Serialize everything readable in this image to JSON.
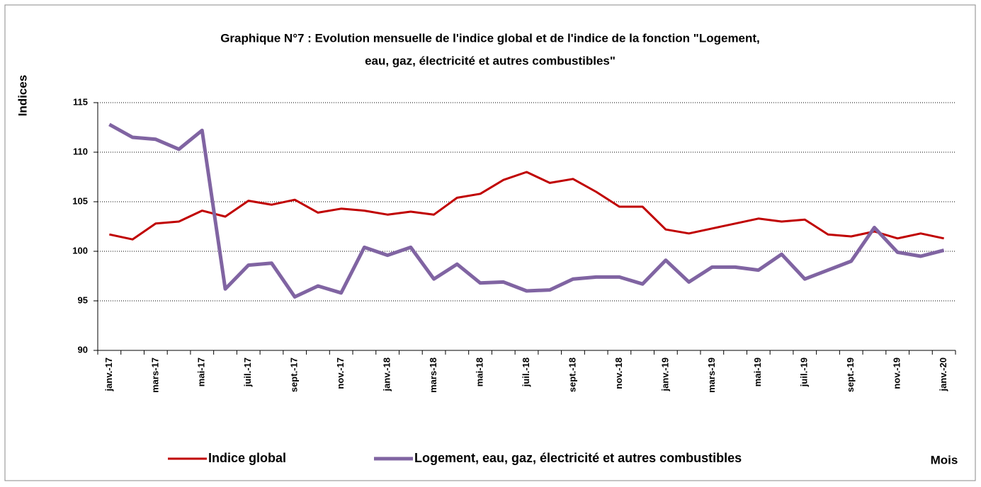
{
  "chart_data": {
    "type": "line",
    "title": [
      "Graphique N°7 : Evolution mensuelle de l'indice global et de l'indice de la fonction \"Logement,",
      "eau, gaz, électricité et autres combustibles\""
    ],
    "y_label": "Indices",
    "x_label": "Mois",
    "categories": [
      "janv.-17",
      null,
      "mars-17",
      null,
      "mai-17",
      null,
      "juil.-17",
      null,
      "sept.-17",
      null,
      "nov.-17",
      null,
      "janv.-18",
      null,
      "mars-18",
      null,
      "mai-18",
      null,
      "juil.-18",
      null,
      "sept.-18",
      null,
      "nov.-18",
      null,
      "janv.-19",
      null,
      "mars-19",
      null,
      "mai-19",
      null,
      "juil.-19",
      null,
      "sept.-19",
      null,
      "nov.-19",
      null,
      "janv.-20"
    ],
    "series": [
      {
        "name": "Indice global",
        "color": "#c00000",
        "width": 3,
        "values": [
          101.7,
          101.2,
          102.8,
          103.0,
          104.1,
          103.5,
          105.1,
          104.7,
          105.2,
          103.9,
          104.3,
          104.1,
          103.7,
          104.0,
          103.7,
          105.4,
          105.8,
          107.2,
          108.0,
          106.9,
          107.3,
          106.0,
          104.5,
          104.5,
          102.2,
          101.8,
          102.3,
          102.8,
          103.3,
          103.0,
          103.2,
          101.7,
          101.5,
          102.0,
          101.3,
          101.8,
          101.3
        ]
      },
      {
        "name": "Logement, eau, gaz, électricité et autres combustibles",
        "color": "#8064a2",
        "width": 5,
        "values": [
          112.8,
          111.5,
          111.3,
          110.3,
          112.2,
          96.2,
          98.6,
          98.8,
          95.4,
          96.5,
          95.8,
          100.4,
          99.6,
          100.4,
          97.2,
          98.7,
          96.8,
          96.9,
          96.0,
          96.1,
          97.2,
          97.4,
          97.4,
          96.7,
          99.1,
          96.9,
          98.4,
          98.4,
          98.1,
          99.7,
          97.2,
          98.1,
          99.0,
          102.4,
          99.9,
          99.5,
          100.1
        ]
      }
    ],
    "ylim": [
      90,
      117.5
    ],
    "yticks": [
      90,
      95,
      100,
      105,
      110,
      115
    ],
    "grid": true,
    "legend": "bottom"
  }
}
